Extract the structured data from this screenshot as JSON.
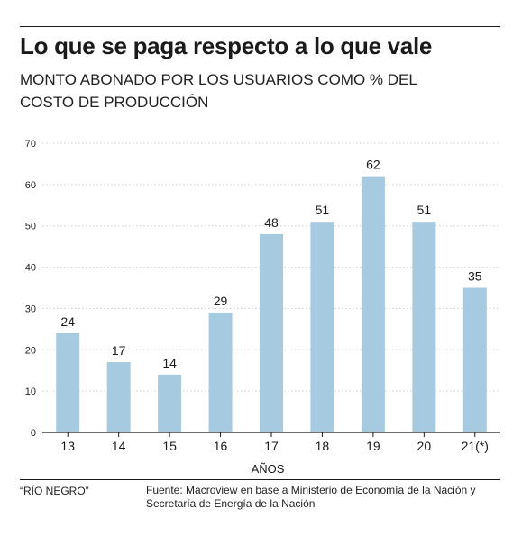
{
  "header": {
    "title": "Lo que se paga respecto a lo que vale",
    "subtitle": "MONTO ABONADO POR LOS USUARIOS COMO % DEL COSTO DE PRODUCCIÓN"
  },
  "chart_data": {
    "type": "bar",
    "categories": [
      "13",
      "14",
      "15",
      "16",
      "17",
      "18",
      "19",
      "20",
      "21(*)"
    ],
    "values": [
      24,
      17,
      14,
      29,
      48,
      51,
      62,
      51,
      35
    ],
    "xlabel": "AÑOS",
    "ylabel": "",
    "ylim": [
      0,
      70
    ],
    "yticks": [
      0,
      10,
      20,
      30,
      40,
      50,
      60,
      70
    ],
    "grid": true,
    "bar_color": "#a6cbe0",
    "grid_color": "#cfcfcf",
    "axis_color": "#1a1a1a"
  },
  "footer": {
    "credit": "“RÍO NEGRO”",
    "source": "Fuente: Macroview en base a Ministerio de Economía de la Nación y Secretaría de Energía de la Nación"
  }
}
